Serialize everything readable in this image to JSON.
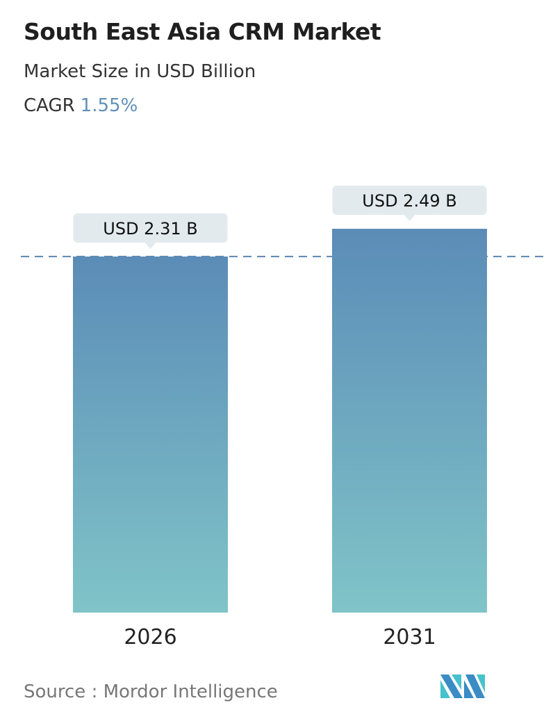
{
  "title": "South East Asia CRM Market",
  "subtitle": "Market Size in USD Billion",
  "cagr_label": "CAGR",
  "cagr_value": "1.55%",
  "source": "Source :  Mordor Intelligence",
  "logo_text": "Mordor Intelligence",
  "colors": {
    "bar_top": "#5b8cb7",
    "bar_bottom": "#80c4c8",
    "label_bg": "#e2eaee",
    "dashed_line": "#5a86b0",
    "cagr": "#5f8fb8"
  },
  "chart_data": {
    "type": "bar",
    "categories": [
      "2026",
      "2031"
    ],
    "values": [
      2.31,
      2.49
    ],
    "data_labels": [
      "USD 2.31 B",
      "USD 2.49 B"
    ],
    "ylabel": "Market Size in USD Billion",
    "reference_line": 2.31,
    "grid": false
  }
}
